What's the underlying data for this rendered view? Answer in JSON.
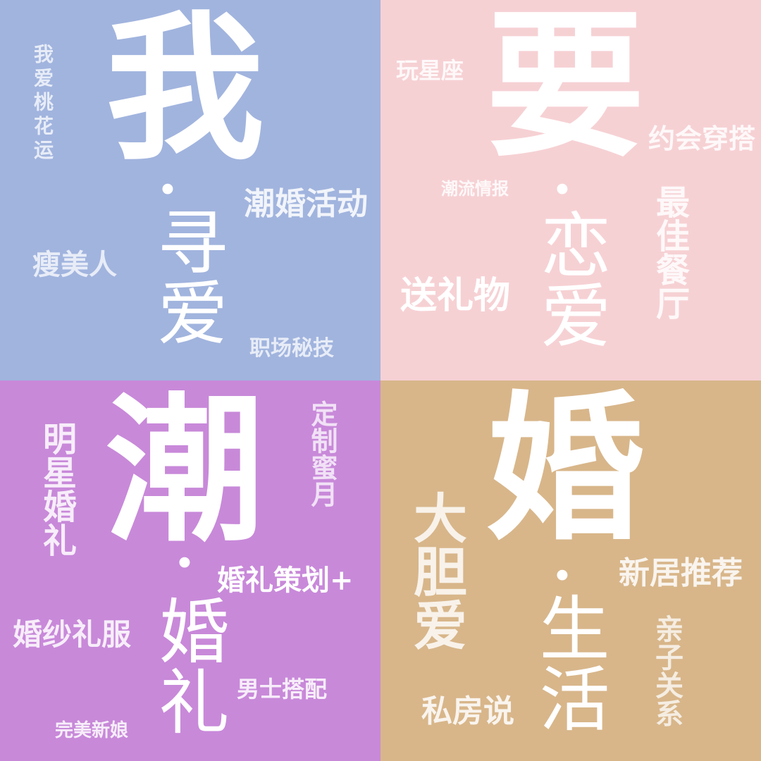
{
  "panels": {
    "top_left": {
      "title_char": "我",
      "separator": "·",
      "subtitle": "寻爱",
      "tags": {
        "vertical_left": "我爱桃花运",
        "right_mid": "潮婚活动",
        "left_mid": "瘦美人",
        "bottom_right": "职场秘技"
      }
    },
    "top_right": {
      "title_char": "要",
      "separator": "·",
      "subtitle": "恋爱",
      "tags": {
        "top_left": "玩星座",
        "right_top": "约会穿搭",
        "left_mid": "潮流情报",
        "vertical_right": "最佳餐厅",
        "left_bottom": "送礼物"
      }
    },
    "bottom_left": {
      "title_char": "潮",
      "separator": "·",
      "subtitle": "婚礼",
      "tags": {
        "vertical_left": "明星婚礼",
        "vertical_right_top": "定制蜜月",
        "right_mid": "婚礼策划+",
        "left_mid": "婚纱礼服",
        "right_bottom": "男士搭配",
        "bottom_left": "完美新娘"
      }
    },
    "bottom_right": {
      "title_char": "婚",
      "separator": "·",
      "subtitle": "生活",
      "tags": {
        "vertical_left": "大胆爱",
        "right_mid": "新居推荐",
        "vertical_right": "亲子关系",
        "bottom_left": "私房说"
      }
    }
  },
  "colors": {
    "top_left_bg": "#a1b4de",
    "top_right_bg": "#f6d1d4",
    "bottom_left_bg": "#c889d9",
    "bottom_right_bg": "#d8b68a",
    "text": "#ffffff"
  }
}
